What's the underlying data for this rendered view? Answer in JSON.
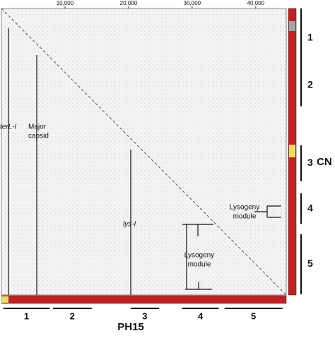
{
  "chart_data": {
    "type": "dotplot",
    "x_label": "PH15",
    "y_label": "CN",
    "xlim": [
      0,
      44800
    ],
    "ylim": [
      44800,
      0
    ],
    "xticks": [
      {
        "value": 10000,
        "label": "10,000"
      },
      {
        "value": 20000,
        "label": "20,000"
      },
      {
        "value": 30000,
        "label": "30,000"
      },
      {
        "value": 40000,
        "label": "40,000"
      }
    ],
    "diagonal": {
      "x": [
        0,
        44800
      ],
      "y": [
        0,
        44800
      ],
      "color": "#555"
    },
    "x_segments": [
      {
        "label": "1",
        "start": 300,
        "end": 7600
      },
      {
        "label": "2",
        "start": 8100,
        "end": 14200
      },
      {
        "label": "3",
        "start": 20300,
        "end": 24800
      },
      {
        "label": "4",
        "start": 28400,
        "end": 34200
      },
      {
        "label": "5",
        "start": 35100,
        "end": 44200
      }
    ],
    "y_segments": [
      {
        "label": "1",
        "start": 0,
        "end": 9200
      },
      {
        "label": "2",
        "start": 8700,
        "end": 15300
      },
      {
        "label": "3",
        "start": 21400,
        "end": 27000
      },
      {
        "label": "4",
        "start": 28900,
        "end": 33700
      },
      {
        "label": "5",
        "start": 35300,
        "end": 44700
      }
    ],
    "annotations": {
      "terl": "terL-I",
      "capsid": [
        "Major",
        "capsid"
      ],
      "lys": "lys-I",
      "lysogeny_x": [
        "Lysogeny",
        "module"
      ],
      "lysogeny_y": [
        "Lysogeny",
        "module"
      ]
    }
  }
}
